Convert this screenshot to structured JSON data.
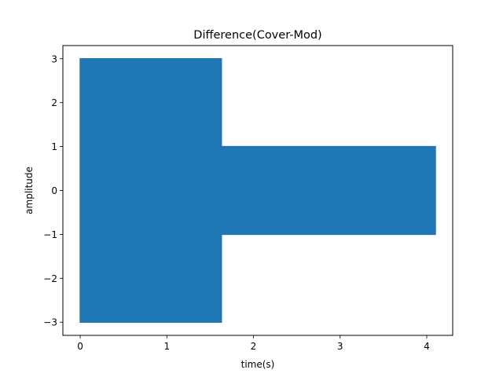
{
  "chart_data": {
    "type": "line",
    "title": "Difference(Cover-Mod)",
    "xlabel": "time(s)",
    "ylabel": "amplitude",
    "xlim": [
      -0.2,
      4.3
    ],
    "ylim": [
      -3.3,
      3.3
    ],
    "xticks": [
      0,
      1,
      2,
      3,
      4
    ],
    "yticks": [
      3,
      2,
      1,
      0,
      -1,
      -2,
      -3
    ],
    "xtick_labels": [
      "0",
      "1",
      "2",
      "3",
      "4"
    ],
    "ytick_labels": [
      "3",
      "2",
      "1",
      "0",
      "−1",
      "−2",
      "−3"
    ],
    "grid": false,
    "color": "#1f77b4",
    "series": [
      {
        "segments": [
          {
            "x_start": 0.0,
            "x_end": 1.63,
            "y_min": -3,
            "y_max": 3
          },
          {
            "x_start": 1.63,
            "x_end": 4.1,
            "y_min": -1,
            "y_max": 1
          }
        ]
      }
    ]
  }
}
